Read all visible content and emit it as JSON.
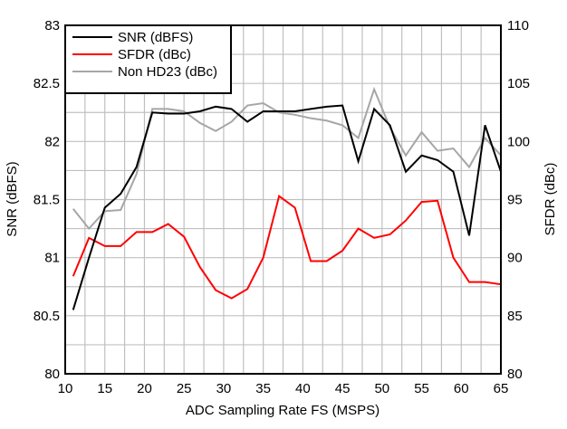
{
  "chart_data": {
    "type": "line",
    "title": "",
    "xlabel": "ADC Sampling Rate FS (MSPS)",
    "ylabel": "SNR (dBFS)",
    "y2label": "SFDR (dBc)",
    "xlim": [
      10,
      65
    ],
    "ylim": [
      80,
      83
    ],
    "y2lim": [
      80,
      110
    ],
    "xticks": [
      "10",
      "15",
      "20",
      "25",
      "30",
      "35",
      "40",
      "45",
      "50",
      "55",
      "60",
      "65"
    ],
    "yticks": [
      "80",
      "80.5",
      "81",
      "81.5",
      "82",
      "82.5",
      "83"
    ],
    "y2ticks": [
      "80",
      "85",
      "90",
      "95",
      "100",
      "105",
      "110"
    ],
    "grid": true,
    "legend_position": "top-left",
    "x": [
      11,
      13,
      15,
      17,
      19,
      21,
      23,
      25,
      27,
      29,
      31,
      33,
      35,
      37,
      39,
      41,
      43,
      45,
      47,
      49,
      51,
      53,
      55,
      57,
      59,
      61,
      63,
      65
    ],
    "series": [
      {
        "name": "SNR (dBFS)",
        "axis": "left",
        "color": "#000000",
        "values": [
          80.55,
          81.0,
          81.43,
          81.55,
          81.78,
          82.25,
          82.24,
          82.24,
          82.26,
          82.3,
          82.28,
          82.17,
          82.26,
          82.26,
          82.26,
          82.28,
          82.3,
          82.31,
          81.83,
          82.28,
          82.14,
          81.74,
          81.88,
          81.84,
          81.74,
          81.19,
          82.14,
          81.74
        ]
      },
      {
        "name": "SFDR (dBc)",
        "axis": "right",
        "color": "#ff0000",
        "values": [
          88.4,
          91.7,
          91.0,
          91.0,
          92.2,
          92.2,
          92.9,
          91.8,
          89.2,
          87.2,
          86.5,
          87.3,
          90.0,
          95.3,
          94.3,
          89.7,
          89.7,
          90.6,
          92.5,
          91.7,
          92.0,
          93.2,
          94.8,
          94.9,
          90.0,
          87.9,
          87.9,
          87.7
        ]
      },
      {
        "name": "Non HD23 (dBc)",
        "axis": "right",
        "color": "#a6a6a6",
        "values": [
          94.2,
          92.5,
          94.0,
          94.1,
          97.2,
          102.8,
          102.8,
          102.6,
          101.6,
          100.9,
          101.7,
          103.1,
          103.3,
          102.5,
          102.3,
          102.0,
          101.8,
          101.4,
          100.3,
          104.5,
          101.2,
          98.8,
          100.8,
          99.2,
          99.4,
          97.8,
          100.3,
          98.8
        ]
      }
    ]
  }
}
